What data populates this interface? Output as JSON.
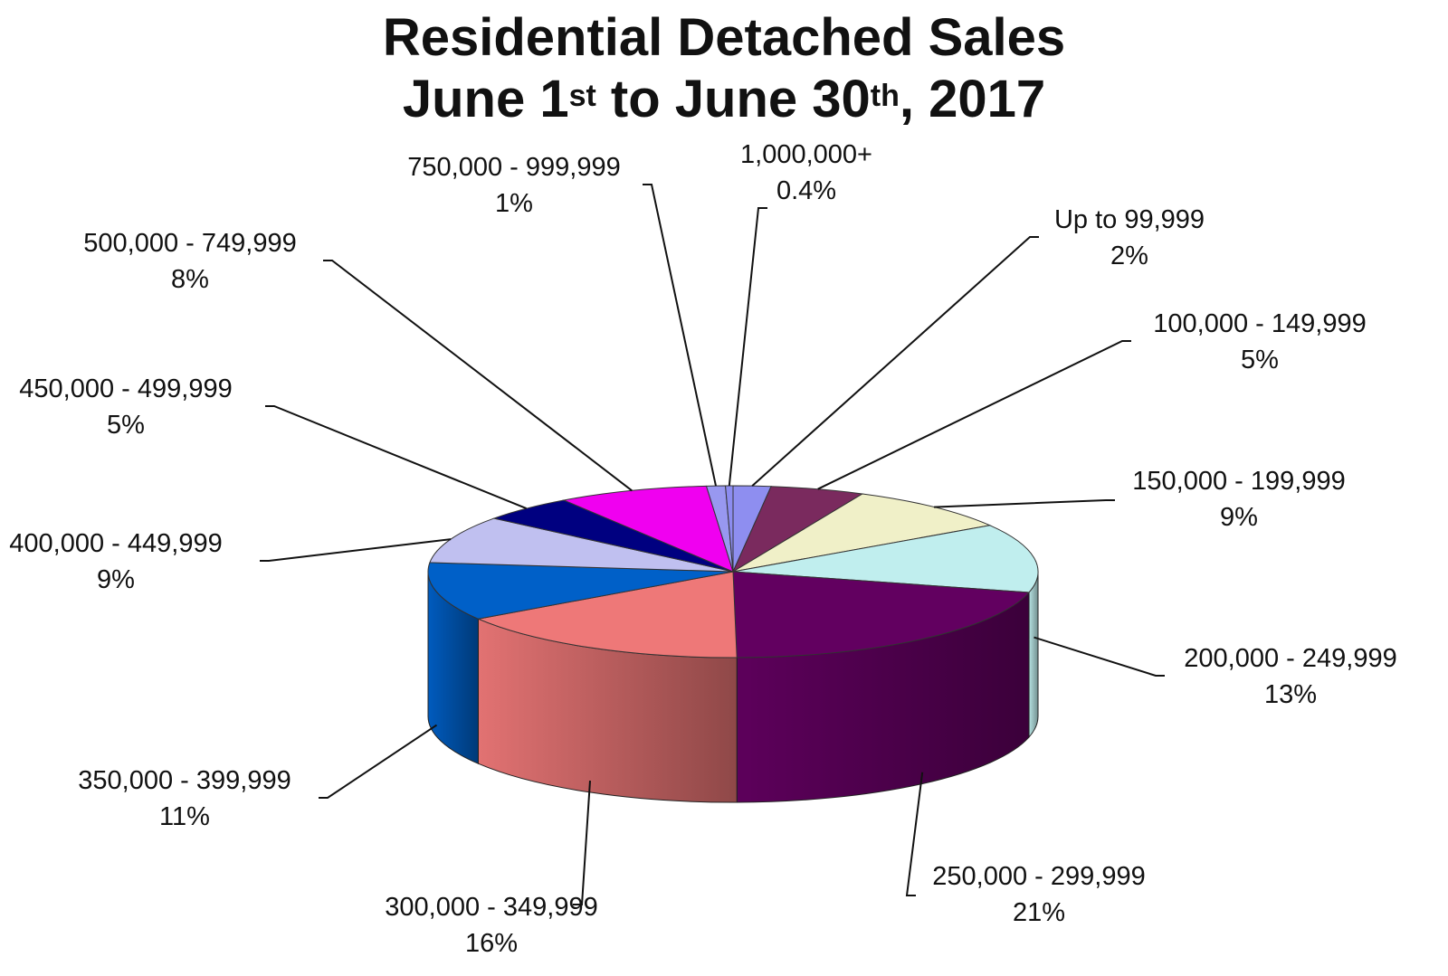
{
  "title": {
    "line1": "Residential Detached Sales",
    "line2_parts": [
      "June 1",
      "st",
      " to June 30",
      "th",
      ", 2017"
    ]
  },
  "chart_data": {
    "type": "pie",
    "title": "Residential Detached Sales June 1st to June 30th, 2017",
    "style": "3d",
    "slices": [
      {
        "label": "Up to 99,999",
        "pct_label": "2%",
        "value": 2,
        "color": "#8e8ef0"
      },
      {
        "label": "100,000 - 149,999",
        "pct_label": "5%",
        "value": 5,
        "color": "#7a2a5e"
      },
      {
        "label": "150,000 - 199,999",
        "pct_label": "9%",
        "value": 9,
        "color": "#f0f0c8"
      },
      {
        "label": "200,000 - 249,999",
        "pct_label": "13%",
        "value": 13,
        "color": "#c0eeee"
      },
      {
        "label": "250,000 - 299,999",
        "pct_label": "21%",
        "value": 21,
        "color": "#620060"
      },
      {
        "label": "300,000 - 349,999",
        "pct_label": "16%",
        "value": 16,
        "color": "#ee7878"
      },
      {
        "label": "350,000 - 399,999",
        "pct_label": "11%",
        "value": 11,
        "color": "#0060c8"
      },
      {
        "label": "400,000 - 449,999",
        "pct_label": "9%",
        "value": 9,
        "color": "#c0c0f0"
      },
      {
        "label": "450,000 - 499,999",
        "pct_label": "5%",
        "value": 5,
        "color": "#000080"
      },
      {
        "label": "500,000 - 749,999",
        "pct_label": "8%",
        "value": 8,
        "color": "#f000f0"
      },
      {
        "label": "750,000 - 999,999",
        "pct_label": "1%",
        "value": 1,
        "color": "#9898f0"
      },
      {
        "label": "1,000,000+",
        "pct_label": "0.4%",
        "value": 0.4,
        "color": "#8c8cf0"
      }
    ]
  }
}
